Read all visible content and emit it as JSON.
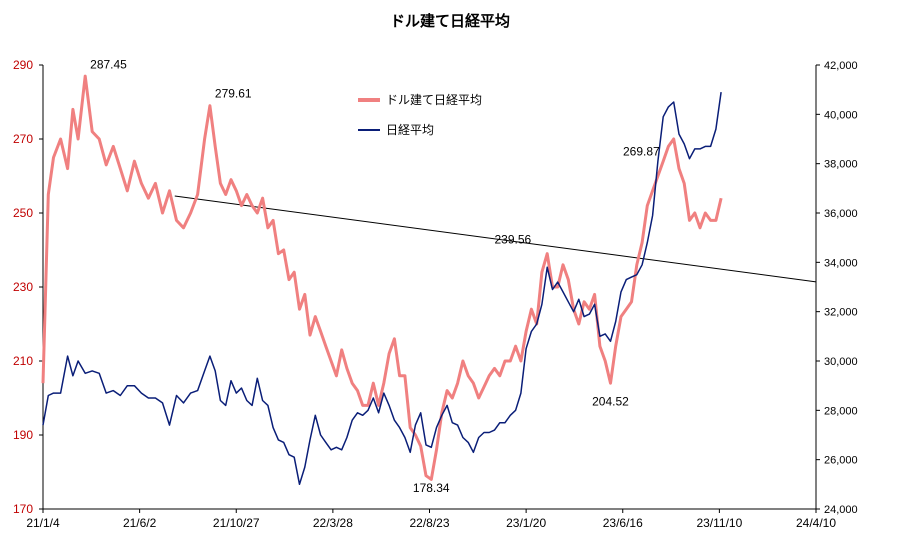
{
  "chart_data": {
    "type": "line",
    "title": "ドル建て日経平均",
    "x_tick_labels": [
      "21/1/4",
      "21/6/2",
      "21/10/27",
      "22/3/28",
      "22/8/23",
      "23/1/20",
      "23/6/16",
      "23/11/10",
      "24/4/10"
    ],
    "y_left": {
      "min": 170,
      "max": 290,
      "ticks": [
        170,
        190,
        210,
        230,
        250,
        270,
        290
      ],
      "color": "#c00000"
    },
    "y_right": {
      "min": 24000,
      "max": 42000,
      "ticks": [
        24000,
        26000,
        28000,
        30000,
        32000,
        34000,
        36000,
        38000,
        40000,
        42000
      ],
      "tick_labels": [
        "24,000",
        "26,000",
        "28,000",
        "30,000",
        "32,000",
        "34,000",
        "36,000",
        "38,000",
        "40,000",
        "42,000"
      ]
    },
    "legend": {
      "placement": "top-center"
    },
    "series": [
      {
        "name": "ドル建て日経平均",
        "axis": "left",
        "color": "#f08080",
        "points": [
          [
            0,
            204
          ],
          [
            3,
            255
          ],
          [
            6,
            265
          ],
          [
            10,
            270
          ],
          [
            14,
            262
          ],
          [
            17,
            278
          ],
          [
            20,
            270
          ],
          [
            24,
            287
          ],
          [
            28,
            272
          ],
          [
            32,
            270
          ],
          [
            36,
            263
          ],
          [
            40,
            268
          ],
          [
            44,
            262
          ],
          [
            48,
            256
          ],
          [
            52,
            264
          ],
          [
            56,
            258
          ],
          [
            60,
            254
          ],
          [
            64,
            258
          ],
          [
            68,
            250
          ],
          [
            72,
            256
          ],
          [
            76,
            248
          ],
          [
            80,
            246
          ],
          [
            84,
            250
          ],
          [
            88,
            255
          ],
          [
            92,
            270
          ],
          [
            95,
            279
          ],
          [
            98,
            268
          ],
          [
            101,
            258
          ],
          [
            104,
            255
          ],
          [
            107,
            259
          ],
          [
            110,
            256
          ],
          [
            113,
            252
          ],
          [
            116,
            255
          ],
          [
            119,
            252
          ],
          [
            122,
            250
          ],
          [
            125,
            254
          ],
          [
            128,
            246
          ],
          [
            131,
            248
          ],
          [
            134,
            239
          ],
          [
            137,
            240
          ],
          [
            140,
            232
          ],
          [
            143,
            234
          ],
          [
            146,
            224
          ],
          [
            149,
            228
          ],
          [
            152,
            217
          ],
          [
            155,
            222
          ],
          [
            158,
            218
          ],
          [
            161,
            214
          ],
          [
            164,
            210
          ],
          [
            167,
            206
          ],
          [
            170,
            213
          ],
          [
            173,
            208
          ],
          [
            176,
            204
          ],
          [
            179,
            202
          ],
          [
            182,
            198
          ],
          [
            185,
            198
          ],
          [
            188,
            204
          ],
          [
            191,
            198
          ],
          [
            194,
            204
          ],
          [
            197,
            212
          ],
          [
            200,
            216
          ],
          [
            203,
            206
          ],
          [
            206,
            206
          ],
          [
            209,
            192
          ],
          [
            212,
            190
          ],
          [
            215,
            187
          ],
          [
            218,
            179
          ],
          [
            221,
            178
          ],
          [
            224,
            186
          ],
          [
            227,
            196
          ],
          [
            230,
            202
          ],
          [
            233,
            200
          ],
          [
            236,
            204
          ],
          [
            239,
            210
          ],
          [
            242,
            206
          ],
          [
            245,
            204
          ],
          [
            248,
            200
          ],
          [
            251,
            203
          ],
          [
            254,
            206
          ],
          [
            257,
            208
          ],
          [
            260,
            206
          ],
          [
            263,
            210
          ],
          [
            266,
            210
          ],
          [
            269,
            214
          ],
          [
            272,
            210
          ],
          [
            275,
            218
          ],
          [
            278,
            224
          ],
          [
            281,
            220
          ],
          [
            284,
            234
          ],
          [
            287,
            239
          ],
          [
            290,
            230
          ],
          [
            293,
            230
          ],
          [
            296,
            236
          ],
          [
            299,
            232
          ],
          [
            302,
            224
          ],
          [
            305,
            220
          ],
          [
            308,
            226
          ],
          [
            311,
            224
          ],
          [
            314,
            228
          ],
          [
            317,
            214
          ],
          [
            320,
            210
          ],
          [
            323,
            204
          ],
          [
            326,
            214
          ],
          [
            329,
            222
          ],
          [
            332,
            224
          ],
          [
            335,
            226
          ],
          [
            338,
            236
          ],
          [
            341,
            242
          ],
          [
            344,
            252
          ],
          [
            347,
            256
          ],
          [
            350,
            260
          ],
          [
            353,
            264
          ],
          [
            356,
            268
          ],
          [
            359,
            270
          ],
          [
            362,
            262
          ],
          [
            365,
            258
          ],
          [
            368,
            248
          ],
          [
            371,
            250
          ],
          [
            374,
            246
          ],
          [
            377,
            250
          ],
          [
            380,
            248
          ],
          [
            383,
            248
          ],
          [
            386,
            254
          ]
        ]
      },
      {
        "name": "日経平均",
        "axis": "right",
        "color": "#0a1e78",
        "points": [
          [
            0,
            27400
          ],
          [
            3,
            28600
          ],
          [
            6,
            28700
          ],
          [
            10,
            28700
          ],
          [
            14,
            30200
          ],
          [
            17,
            29400
          ],
          [
            20,
            30000
          ],
          [
            24,
            29500
          ],
          [
            28,
            29600
          ],
          [
            32,
            29500
          ],
          [
            36,
            28700
          ],
          [
            40,
            28800
          ],
          [
            44,
            28600
          ],
          [
            48,
            29000
          ],
          [
            52,
            29000
          ],
          [
            56,
            28700
          ],
          [
            60,
            28500
          ],
          [
            64,
            28500
          ],
          [
            68,
            28300
          ],
          [
            72,
            27400
          ],
          [
            76,
            28600
          ],
          [
            80,
            28300
          ],
          [
            84,
            28700
          ],
          [
            88,
            28800
          ],
          [
            92,
            29600
          ],
          [
            95,
            30200
          ],
          [
            98,
            29600
          ],
          [
            101,
            28400
          ],
          [
            104,
            28200
          ],
          [
            107,
            29200
          ],
          [
            110,
            28700
          ],
          [
            113,
            28900
          ],
          [
            116,
            28400
          ],
          [
            119,
            28200
          ],
          [
            122,
            29300
          ],
          [
            125,
            28400
          ],
          [
            128,
            28200
          ],
          [
            131,
            27300
          ],
          [
            134,
            26800
          ],
          [
            137,
            26700
          ],
          [
            140,
            26200
          ],
          [
            143,
            26100
          ],
          [
            146,
            25000
          ],
          [
            149,
            25700
          ],
          [
            152,
            26800
          ],
          [
            155,
            27800
          ],
          [
            158,
            27000
          ],
          [
            161,
            26700
          ],
          [
            164,
            26400
          ],
          [
            167,
            26500
          ],
          [
            170,
            26400
          ],
          [
            173,
            26900
          ],
          [
            176,
            27600
          ],
          [
            179,
            27900
          ],
          [
            182,
            27800
          ],
          [
            185,
            28000
          ],
          [
            188,
            28500
          ],
          [
            191,
            27900
          ],
          [
            194,
            28700
          ],
          [
            197,
            28200
          ],
          [
            200,
            27600
          ],
          [
            203,
            27300
          ],
          [
            206,
            26900
          ],
          [
            209,
            26300
          ],
          [
            212,
            27400
          ],
          [
            215,
            27900
          ],
          [
            218,
            26600
          ],
          [
            221,
            26500
          ],
          [
            224,
            27300
          ],
          [
            227,
            27800
          ],
          [
            230,
            28200
          ],
          [
            233,
            27500
          ],
          [
            236,
            27400
          ],
          [
            239,
            26900
          ],
          [
            242,
            26700
          ],
          [
            245,
            26300
          ],
          [
            248,
            26900
          ],
          [
            251,
            27100
          ],
          [
            254,
            27100
          ],
          [
            257,
            27200
          ],
          [
            260,
            27500
          ],
          [
            263,
            27500
          ],
          [
            266,
            27800
          ],
          [
            269,
            28000
          ],
          [
            272,
            28700
          ],
          [
            275,
            30500
          ],
          [
            278,
            31200
          ],
          [
            281,
            31500
          ],
          [
            284,
            32300
          ],
          [
            287,
            33800
          ],
          [
            290,
            32900
          ],
          [
            293,
            33200
          ],
          [
            296,
            32800
          ],
          [
            299,
            32400
          ],
          [
            302,
            32000
          ],
          [
            305,
            32500
          ],
          [
            308,
            31800
          ],
          [
            311,
            31900
          ],
          [
            314,
            32300
          ],
          [
            317,
            31000
          ],
          [
            320,
            31100
          ],
          [
            323,
            30800
          ],
          [
            326,
            31600
          ],
          [
            329,
            32800
          ],
          [
            332,
            33300
          ],
          [
            335,
            33400
          ],
          [
            338,
            33500
          ],
          [
            341,
            33900
          ],
          [
            344,
            34800
          ],
          [
            347,
            35900
          ],
          [
            350,
            38100
          ],
          [
            353,
            39900
          ],
          [
            356,
            40300
          ],
          [
            359,
            40500
          ],
          [
            362,
            39200
          ],
          [
            365,
            38800
          ],
          [
            368,
            38200
          ],
          [
            371,
            38600
          ],
          [
            374,
            38600
          ],
          [
            377,
            38700
          ],
          [
            380,
            38700
          ],
          [
            383,
            39400
          ],
          [
            386,
            40900
          ]
        ]
      }
    ],
    "annotations": [
      {
        "text": "287.45"
      },
      {
        "text": "279.61"
      },
      {
        "text": "178.34"
      },
      {
        "text": "239.56"
      },
      {
        "text": "204.52"
      },
      {
        "text": "269.87"
      }
    ],
    "trendline": {
      "from": [
        75,
        254.6
      ],
      "to": [
        440,
        231.4
      ]
    }
  }
}
